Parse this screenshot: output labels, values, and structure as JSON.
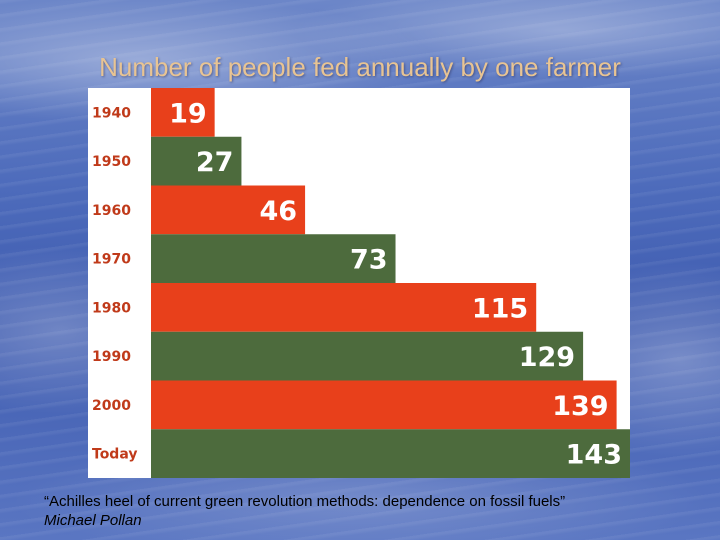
{
  "slide": {
    "title": "Number of people fed annually by one farmer",
    "quote": "“Achilles heel of current green revolution methods: dependence on fossil fuels”",
    "author": "Michael Pollan"
  },
  "colors": {
    "red": "#e8401b",
    "green": "#4d6b3d",
    "label": "#c03a1a",
    "title": "#e8c493"
  },
  "chart_data": {
    "type": "bar",
    "orientation": "horizontal",
    "categories": [
      "1940",
      "1950",
      "1960",
      "1970",
      "1980",
      "1990",
      "2000",
      "Today"
    ],
    "values": [
      19,
      27,
      46,
      73,
      115,
      129,
      139,
      143
    ],
    "bar_colors": [
      "#e8401b",
      "#4d6b3d",
      "#e8401b",
      "#4d6b3d",
      "#e8401b",
      "#4d6b3d",
      "#e8401b",
      "#4d6b3d"
    ],
    "title": "Number of people fed annually by one farmer",
    "xlabel": "",
    "ylabel": "",
    "xlim": [
      0,
      143
    ],
    "grid": false,
    "legend": "none"
  }
}
